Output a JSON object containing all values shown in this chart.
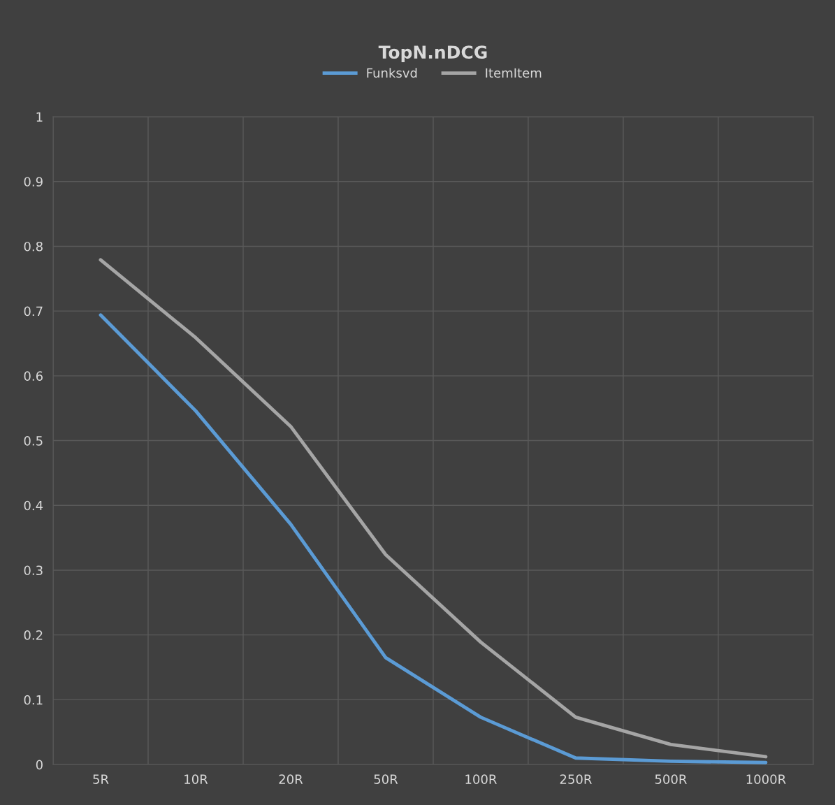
{
  "chart_data": {
    "type": "line",
    "title": "TopN.nDCG",
    "categories": [
      "5R",
      "10R",
      "20R",
      "50R",
      "100R",
      "250R",
      "500R",
      "1000R"
    ],
    "series": [
      {
        "name": "Funksvd",
        "color": "#5b9bd5",
        "values": [
          0.694,
          0.546,
          0.371,
          0.165,
          0.073,
          0.01,
          0.005,
          0.003
        ]
      },
      {
        "name": "ItemItem",
        "color": "#a5a5a5",
        "values": [
          0.779,
          0.659,
          0.522,
          0.324,
          0.189,
          0.073,
          0.031,
          0.012
        ]
      }
    ],
    "ylim": [
      0,
      1
    ],
    "yticks": [
      0,
      0.1,
      0.2,
      0.3,
      0.4,
      0.5,
      0.6,
      0.7,
      0.8,
      0.9,
      1
    ],
    "grid": true,
    "legend": "top",
    "marker": "none",
    "line_style": "solid"
  }
}
